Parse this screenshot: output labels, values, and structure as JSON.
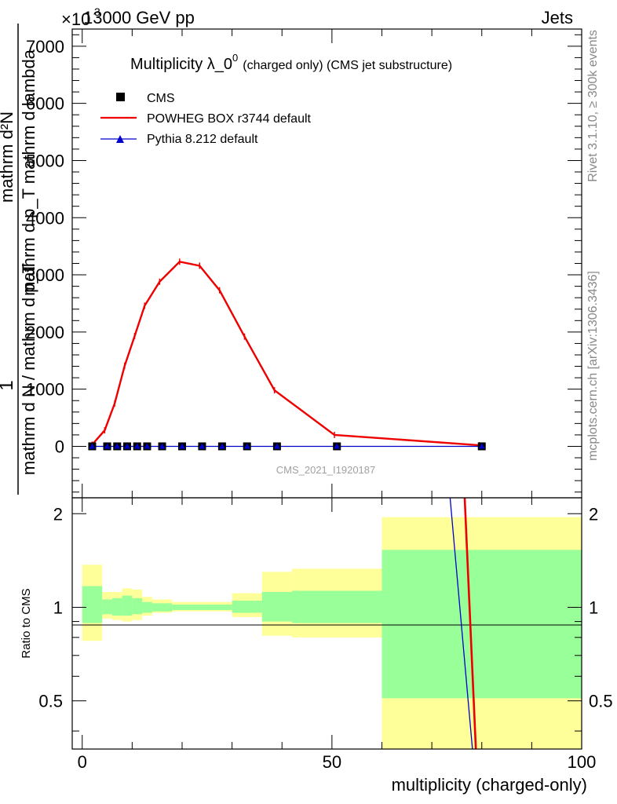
{
  "header": {
    "left": "13000 GeV pp",
    "right": "Jets",
    "exponent": "×10",
    "exponent_power": "3"
  },
  "side_text": {
    "rivet": "Rivet 3.1.10, ≥ 300k events",
    "mcplots": "mcplots.cern.ch [arXiv:1306.3436]"
  },
  "chart_data": [
    {
      "type": "line",
      "panel": "main",
      "title": "Multiplicity λ_0",
      "title_sup": "0",
      "title_suffix": "(charged only) (CMS jet substructure)",
      "watermark": "CMS_2021_I1920187",
      "ylabel_numerator": "1",
      "ylabel_numerator_expr": "mathrm d²N",
      "ylabel_mid": "mathrm d p_T mathrm d lambda",
      "ylabel_denominator": "mathrm d N / mathrm d p_T",
      "ylim": [
        -900,
        7300
      ],
      "yticks": [
        0,
        1000,
        2000,
        3000,
        4000,
        5000,
        6000,
        7000
      ],
      "ytick_labels": [
        "0",
        "1000",
        "2000",
        "3000",
        "4000",
        "5000",
        "6000",
        "7000"
      ],
      "xlim": [
        -2,
        100
      ],
      "legend": {
        "position": "top-left",
        "entries": [
          "CMS",
          "POWHEG BOX r3744 default",
          "Pythia 8.212 default"
        ]
      },
      "series": [
        {
          "name": "CMS",
          "marker": "square",
          "color": "#000000",
          "x": [
            2,
            5,
            7,
            9,
            11,
            13,
            16,
            20,
            24,
            28,
            33,
            39,
            51,
            80
          ],
          "y": [
            0,
            0,
            0,
            0,
            0,
            0,
            0,
            0,
            0,
            0,
            0,
            0,
            0,
            0
          ]
        },
        {
          "name": "POWHEG BOX r3744 default",
          "marker": "line",
          "color": "#ee0000",
          "x": [
            2,
            4.5,
            6.5,
            8.5,
            10.5,
            12.5,
            15.5,
            19.5,
            23.5,
            27.5,
            32.5,
            38.5,
            50.5,
            79.5
          ],
          "y": [
            30,
            280,
            750,
            1410,
            1930,
            2460,
            2880,
            3230,
            3160,
            2730,
            1920,
            980,
            200,
            20
          ]
        },
        {
          "name": "Pythia 8.212 default",
          "marker": "triangle",
          "color": "#0000cc",
          "x": [
            2,
            5,
            7,
            9,
            11,
            13,
            16,
            20,
            24,
            28,
            33,
            39,
            51,
            80
          ],
          "y": [
            0,
            0,
            0,
            0,
            0,
            0,
            0,
            0,
            0,
            0,
            0,
            0,
            0,
            0
          ]
        }
      ]
    },
    {
      "type": "area",
      "panel": "ratio",
      "ylabel": "Ratio to CMS",
      "xlabel": "multiplicity (charged-only)",
      "xlim": [
        -2,
        100
      ],
      "ylim": [
        0.35,
        2.25
      ],
      "yticks": [
        0.5,
        1,
        2
      ],
      "ytick_labels": [
        "0.5",
        "1",
        "2"
      ],
      "xticks": [
        0,
        50,
        100
      ],
      "xtick_labels": [
        "0",
        "50",
        "100"
      ],
      "bands": {
        "colors": {
          "inner": "#99ff99",
          "outer": "#ffff99"
        },
        "bins": [
          {
            "x0": 0,
            "x1": 4,
            "in_lo": 0.89,
            "in_hi": 1.17,
            "out_lo": 0.78,
            "out_hi": 1.37
          },
          {
            "x0": 4,
            "x1": 6,
            "in_lo": 0.95,
            "in_hi": 1.06,
            "out_lo": 0.92,
            "out_hi": 1.12
          },
          {
            "x0": 6,
            "x1": 8,
            "in_lo": 0.94,
            "in_hi": 1.07,
            "out_lo": 0.91,
            "out_hi": 1.12
          },
          {
            "x0": 8,
            "x1": 10,
            "in_lo": 0.94,
            "in_hi": 1.09,
            "out_lo": 0.9,
            "out_hi": 1.15
          },
          {
            "x0": 10,
            "x1": 12,
            "in_lo": 0.95,
            "in_hi": 1.07,
            "out_lo": 0.91,
            "out_hi": 1.14
          },
          {
            "x0": 12,
            "x1": 14,
            "in_lo": 0.96,
            "in_hi": 1.04,
            "out_lo": 0.94,
            "out_hi": 1.08
          },
          {
            "x0": 14,
            "x1": 18,
            "in_lo": 0.97,
            "in_hi": 1.03,
            "out_lo": 0.96,
            "out_hi": 1.06
          },
          {
            "x0": 18,
            "x1": 22,
            "in_lo": 0.98,
            "in_hi": 1.02,
            "out_lo": 0.97,
            "out_hi": 1.04
          },
          {
            "x0": 22,
            "x1": 26,
            "in_lo": 0.98,
            "in_hi": 1.02,
            "out_lo": 0.97,
            "out_hi": 1.04
          },
          {
            "x0": 26,
            "x1": 30,
            "in_lo": 0.98,
            "in_hi": 1.02,
            "out_lo": 0.97,
            "out_hi": 1.04
          },
          {
            "x0": 30,
            "x1": 36,
            "in_lo": 0.96,
            "in_hi": 1.05,
            "out_lo": 0.93,
            "out_hi": 1.11
          },
          {
            "x0": 36,
            "x1": 42,
            "in_lo": 0.9,
            "in_hi": 1.12,
            "out_lo": 0.81,
            "out_hi": 1.3
          },
          {
            "x0": 42,
            "x1": 60,
            "in_lo": 0.89,
            "in_hi": 1.13,
            "out_lo": 0.8,
            "out_hi": 1.33
          },
          {
            "x0": 60,
            "x1": 100,
            "in_lo": 0.51,
            "in_hi": 1.53,
            "out_lo": 0.35,
            "out_hi": 1.95
          }
        ]
      },
      "series": [
        {
          "name": "POWHEG BOX r3744 default",
          "color": "#ee0000",
          "x": [
            76.5,
            79
          ],
          "y": [
            2.4,
            0.3
          ]
        },
        {
          "name": "Pythia 8.212 default",
          "color": "#0000cc",
          "x": [
            73.5,
            78.5
          ],
          "y": [
            2.4,
            0.3
          ]
        }
      ]
    }
  ]
}
